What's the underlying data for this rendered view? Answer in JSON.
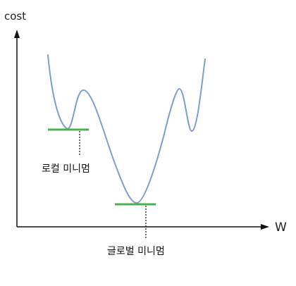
{
  "axes": {
    "y_label": "cost",
    "x_label": "W"
  },
  "annotations": {
    "local_min_label": "로컬 미니멈",
    "global_min_label": "글로벌 미니멈"
  },
  "colors": {
    "curve": "#7b9fd4",
    "minimum_marker": "#4caf50",
    "axis": "#111111",
    "guide_line": "#111111"
  }
}
